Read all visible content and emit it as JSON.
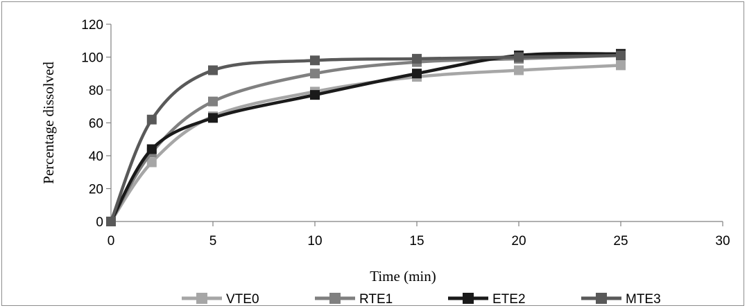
{
  "chart_data": {
    "type": "line",
    "xlabel": "Time (min)",
    "ylabel": "Percentage dissolved",
    "xlim": [
      0,
      30
    ],
    "ylim": [
      0,
      120
    ],
    "xticks": [
      0,
      5,
      10,
      15,
      20,
      25,
      30
    ],
    "yticks": [
      0,
      20,
      40,
      60,
      80,
      100,
      120
    ],
    "grid": false,
    "legend_position": "bottom",
    "smooth": true,
    "marker": "square",
    "series": [
      {
        "name": "VTE0",
        "color": "#a6a6a6",
        "x": [
          0,
          2,
          5,
          10,
          15,
          20,
          25
        ],
        "y": [
          0,
          36,
          64,
          79,
          88,
          92,
          95
        ]
      },
      {
        "name": "RTE1",
        "color": "#808080",
        "x": [
          0,
          2,
          5,
          10,
          15,
          20,
          25
        ],
        "y": [
          0,
          42,
          73,
          90,
          97,
          99,
          101
        ]
      },
      {
        "name": "ETE2",
        "color": "#1a1a1a",
        "x": [
          0,
          2,
          5,
          10,
          15,
          20,
          25
        ],
        "y": [
          0,
          44,
          63,
          77,
          90,
          101,
          102
        ]
      },
      {
        "name": "MTE3",
        "color": "#595959",
        "x": [
          0,
          2,
          5,
          10,
          15,
          20,
          25
        ],
        "y": [
          0,
          62,
          92,
          98,
          99,
          100,
          101
        ]
      }
    ]
  }
}
